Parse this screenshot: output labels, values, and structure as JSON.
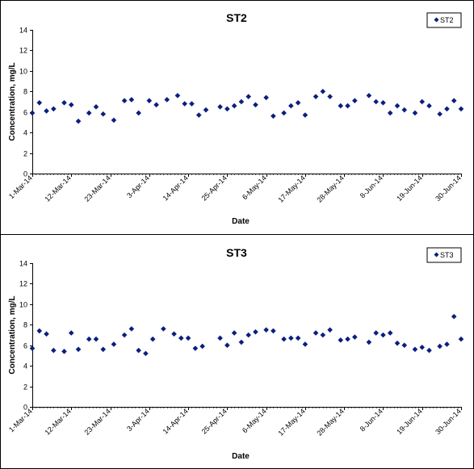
{
  "chart_data": [
    {
      "type": "scatter",
      "title": "ST2",
      "xlabel": "Date",
      "ylabel": "Concentration, mg/L",
      "ylim": [
        0,
        14
      ],
      "yticks": [
        0,
        2,
        4,
        6,
        8,
        10,
        12,
        14
      ],
      "xlim": [
        "2014-03-01",
        "2014-06-30"
      ],
      "xticks": [
        "1-Mar-14",
        "12-Mar-14",
        "23-Mar-14",
        "3-Apr-14",
        "14-Apr-14",
        "25-Apr-14",
        "6-May-14",
        "17-May-14",
        "28-May-14",
        "8-Jun-14",
        "19-Jun-14",
        "30-Jun-14"
      ],
      "legend": "top-right",
      "grid": false,
      "marker_color": "#0a1f7d",
      "series": [
        {
          "name": "ST2",
          "points": [
            [
              "2014-03-01",
              5.9
            ],
            [
              "2014-03-03",
              6.9
            ],
            [
              "2014-03-05",
              6.1
            ],
            [
              "2014-03-07",
              6.3
            ],
            [
              "2014-03-10",
              6.9
            ],
            [
              "2014-03-12",
              6.7
            ],
            [
              "2014-03-14",
              5.1
            ],
            [
              "2014-03-17",
              5.9
            ],
            [
              "2014-03-19",
              6.5
            ],
            [
              "2014-03-21",
              5.8
            ],
            [
              "2014-03-24",
              5.2
            ],
            [
              "2014-03-27",
              7.1
            ],
            [
              "2014-03-29",
              7.2
            ],
            [
              "2014-03-31",
              5.9
            ],
            [
              "2014-04-03",
              7.1
            ],
            [
              "2014-04-05",
              6.7
            ],
            [
              "2014-04-08",
              7.2
            ],
            [
              "2014-04-11",
              7.6
            ],
            [
              "2014-04-13",
              6.8
            ],
            [
              "2014-04-15",
              6.8
            ],
            [
              "2014-04-17",
              5.7
            ],
            [
              "2014-04-19",
              6.2
            ],
            [
              "2014-04-23",
              6.5
            ],
            [
              "2014-04-25",
              6.3
            ],
            [
              "2014-04-27",
              6.6
            ],
            [
              "2014-04-29",
              7.0
            ],
            [
              "2014-05-01",
              7.5
            ],
            [
              "2014-05-03",
              6.7
            ],
            [
              "2014-05-06",
              7.4
            ],
            [
              "2014-05-08",
              5.6
            ],
            [
              "2014-05-11",
              5.9
            ],
            [
              "2014-05-13",
              6.6
            ],
            [
              "2014-05-15",
              6.9
            ],
            [
              "2014-05-17",
              5.7
            ],
            [
              "2014-05-20",
              7.5
            ],
            [
              "2014-05-22",
              8.0
            ],
            [
              "2014-05-24",
              7.5
            ],
            [
              "2014-05-27",
              6.6
            ],
            [
              "2014-05-29",
              6.6
            ],
            [
              "2014-05-31",
              7.1
            ],
            [
              "2014-06-04",
              7.6
            ],
            [
              "2014-06-06",
              7.0
            ],
            [
              "2014-06-08",
              6.9
            ],
            [
              "2014-06-10",
              5.9
            ],
            [
              "2014-06-12",
              6.6
            ],
            [
              "2014-06-14",
              6.2
            ],
            [
              "2014-06-17",
              5.9
            ],
            [
              "2014-06-19",
              7.0
            ],
            [
              "2014-06-21",
              6.6
            ],
            [
              "2014-06-24",
              5.8
            ],
            [
              "2014-06-26",
              6.3
            ],
            [
              "2014-06-28",
              7.1
            ],
            [
              "2014-06-30",
              6.3
            ]
          ]
        }
      ]
    },
    {
      "type": "scatter",
      "title": "ST3",
      "xlabel": "Date",
      "ylabel": "Concentration, mg/L",
      "ylim": [
        0,
        14
      ],
      "yticks": [
        0,
        2,
        4,
        6,
        8,
        10,
        12,
        14
      ],
      "xlim": [
        "2014-03-01",
        "2014-06-30"
      ],
      "xticks": [
        "1-Mar-14",
        "12-Mar-14",
        "23-Mar-14",
        "3-Apr-14",
        "14-Apr-14",
        "25-Apr-14",
        "6-May-14",
        "17-May-14",
        "28-May-14",
        "8-Jun-14",
        "19-Jun-14",
        "30-Jun-14"
      ],
      "legend": "top-right",
      "grid": false,
      "marker_color": "#0a1f7d",
      "series": [
        {
          "name": "ST3",
          "points": [
            [
              "2014-03-01",
              5.7
            ],
            [
              "2014-03-03",
              7.4
            ],
            [
              "2014-03-05",
              7.1
            ],
            [
              "2014-03-07",
              5.5
            ],
            [
              "2014-03-10",
              5.4
            ],
            [
              "2014-03-12",
              7.2
            ],
            [
              "2014-03-14",
              5.6
            ],
            [
              "2014-03-17",
              6.6
            ],
            [
              "2014-03-19",
              6.6
            ],
            [
              "2014-03-21",
              5.6
            ],
            [
              "2014-03-24",
              6.1
            ],
            [
              "2014-03-27",
              7.0
            ],
            [
              "2014-03-29",
              7.6
            ],
            [
              "2014-03-31",
              5.5
            ],
            [
              "2014-04-02",
              5.2
            ],
            [
              "2014-04-04",
              6.6
            ],
            [
              "2014-04-07",
              7.6
            ],
            [
              "2014-04-10",
              7.1
            ],
            [
              "2014-04-12",
              6.7
            ],
            [
              "2014-04-14",
              6.7
            ],
            [
              "2014-04-16",
              5.7
            ],
            [
              "2014-04-18",
              5.9
            ],
            [
              "2014-04-23",
              6.7
            ],
            [
              "2014-04-25",
              6.0
            ],
            [
              "2014-04-27",
              7.2
            ],
            [
              "2014-04-29",
              6.3
            ],
            [
              "2014-05-01",
              7.0
            ],
            [
              "2014-05-03",
              7.3
            ],
            [
              "2014-05-06",
              7.5
            ],
            [
              "2014-05-08",
              7.4
            ],
            [
              "2014-05-11",
              6.6
            ],
            [
              "2014-05-13",
              6.7
            ],
            [
              "2014-05-15",
              6.7
            ],
            [
              "2014-05-17",
              6.1
            ],
            [
              "2014-05-20",
              7.2
            ],
            [
              "2014-05-22",
              7.0
            ],
            [
              "2014-05-24",
              7.5
            ],
            [
              "2014-05-27",
              6.5
            ],
            [
              "2014-05-29",
              6.6
            ],
            [
              "2014-05-31",
              6.8
            ],
            [
              "2014-06-04",
              6.3
            ],
            [
              "2014-06-06",
              7.2
            ],
            [
              "2014-06-08",
              7.0
            ],
            [
              "2014-06-10",
              7.2
            ],
            [
              "2014-06-12",
              6.2
            ],
            [
              "2014-06-14",
              6.0
            ],
            [
              "2014-06-17",
              5.6
            ],
            [
              "2014-06-19",
              5.8
            ],
            [
              "2014-06-21",
              5.5
            ],
            [
              "2014-06-24",
              5.9
            ],
            [
              "2014-06-26",
              6.1
            ],
            [
              "2014-06-28",
              8.8
            ],
            [
              "2014-06-30",
              6.6
            ]
          ]
        }
      ]
    }
  ]
}
